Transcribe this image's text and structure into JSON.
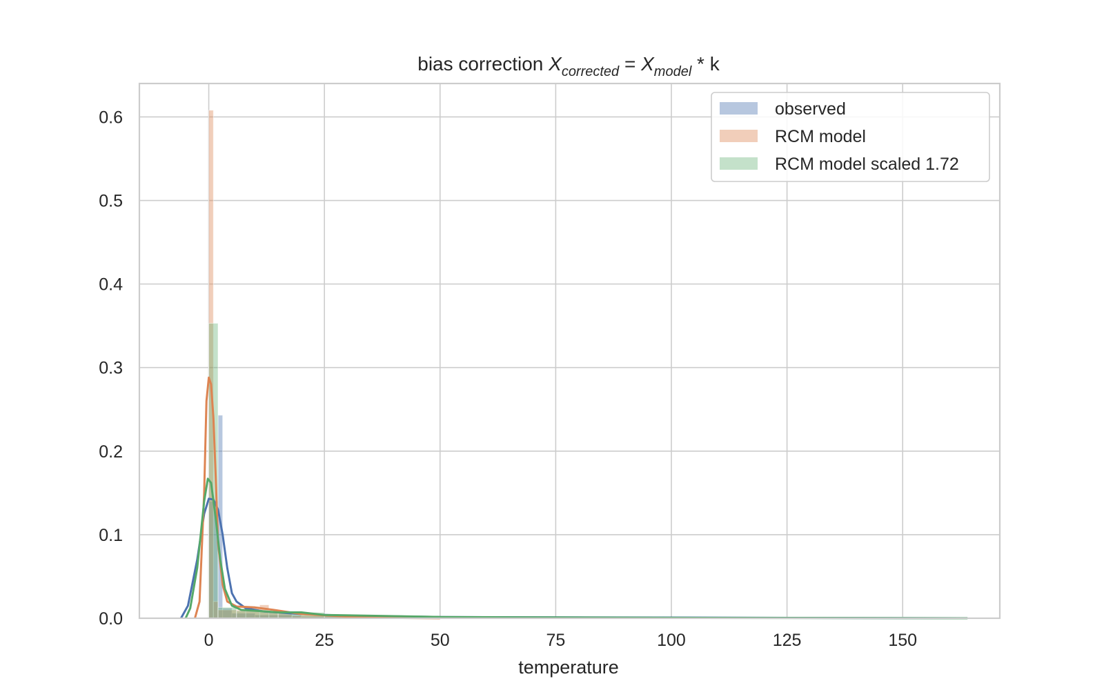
{
  "chart_data": {
    "type": "histogram",
    "title": {
      "prefix": "bias correction ",
      "var1": "X",
      "sub1": "corrected",
      "mid": " = ",
      "var2": "X",
      "sub2": "model",
      "suffix": " * k"
    },
    "xlabel": "temperature",
    "ylabel": "",
    "xlim": [
      -15,
      171
    ],
    "ylim": [
      0,
      0.64
    ],
    "xticks": [
      0,
      25,
      50,
      75,
      100,
      125,
      150
    ],
    "yticks": [
      0.0,
      0.1,
      0.2,
      0.3,
      0.4,
      0.5,
      0.6
    ],
    "xtick_labels": [
      "0",
      "25",
      "50",
      "75",
      "100",
      "125",
      "150"
    ],
    "ytick_labels": [
      "0.0",
      "0.1",
      "0.2",
      "0.3",
      "0.4",
      "0.5",
      "0.6"
    ],
    "grid": true,
    "legend_position": "top-right",
    "series": [
      {
        "name": "observed",
        "color": "#4c72b0",
        "bar_alpha": 0.4,
        "hist_bins": [
          [
            0,
            2,
            0.14
          ],
          [
            2,
            3,
            0.243
          ],
          [
            3,
            5,
            0.012
          ],
          [
            5,
            10,
            0.006
          ],
          [
            10,
            20,
            0.004
          ],
          [
            20,
            40,
            0.002
          ],
          [
            40,
            164,
            0.0015
          ]
        ],
        "kde": [
          [
            -6,
            0.0
          ],
          [
            -4.5,
            0.015
          ],
          [
            -2.5,
            0.07
          ],
          [
            -1,
            0.125
          ],
          [
            0,
            0.143
          ],
          [
            1,
            0.142
          ],
          [
            2,
            0.13
          ],
          [
            3,
            0.1
          ],
          [
            4,
            0.06
          ],
          [
            5,
            0.03
          ],
          [
            6,
            0.02
          ],
          [
            8,
            0.012
          ],
          [
            12,
            0.008
          ],
          [
            20,
            0.005
          ],
          [
            30,
            0.003
          ],
          [
            50,
            0.0015
          ],
          [
            80,
            0.001
          ],
          [
            164,
            0.0
          ]
        ]
      },
      {
        "name": "RCM model",
        "color": "#dd8452",
        "bar_alpha": 0.4,
        "hist_bins": [
          [
            0,
            1,
            0.608
          ],
          [
            1,
            2,
            0.02
          ],
          [
            2,
            8,
            0.01
          ],
          [
            8,
            11,
            0.014
          ],
          [
            11,
            13,
            0.016
          ],
          [
            13,
            18,
            0.008
          ],
          [
            18,
            30,
            0.003
          ]
        ],
        "kde": [
          [
            -3,
            0.0
          ],
          [
            -2,
            0.02
          ],
          [
            -1,
            0.15
          ],
          [
            -0.5,
            0.26
          ],
          [
            0,
            0.288
          ],
          [
            0.5,
            0.28
          ],
          [
            1,
            0.24
          ],
          [
            1.5,
            0.17
          ],
          [
            2,
            0.09
          ],
          [
            3,
            0.04
          ],
          [
            4,
            0.02
          ],
          [
            6,
            0.014
          ],
          [
            10,
            0.013
          ],
          [
            14,
            0.01
          ],
          [
            20,
            0.005
          ],
          [
            30,
            0.002
          ],
          [
            40,
            0.0005
          ],
          [
            50,
            0.0
          ]
        ]
      },
      {
        "name": "RCM model scaled 1.72",
        "color": "#55a868",
        "bar_alpha": 0.35,
        "hist_bins": [
          [
            0,
            2,
            0.353
          ],
          [
            2,
            6,
            0.013
          ],
          [
            6,
            15,
            0.009
          ],
          [
            15,
            25,
            0.007
          ],
          [
            25,
            40,
            0.003
          ],
          [
            40,
            80,
            0.001
          ]
        ],
        "kde": [
          [
            -5,
            0.0
          ],
          [
            -4,
            0.012
          ],
          [
            -2.5,
            0.06
          ],
          [
            -1,
            0.14
          ],
          [
            -0.2,
            0.167
          ],
          [
            0.5,
            0.162
          ],
          [
            1.5,
            0.12
          ],
          [
            2.5,
            0.07
          ],
          [
            3.5,
            0.035
          ],
          [
            5,
            0.015
          ],
          [
            7,
            0.01
          ],
          [
            10,
            0.009
          ],
          [
            15,
            0.007
          ],
          [
            20,
            0.007
          ],
          [
            25,
            0.004
          ],
          [
            35,
            0.003
          ],
          [
            50,
            0.0015
          ],
          [
            70,
            0.001
          ],
          [
            100,
            0.0005
          ],
          [
            130,
            0.0003
          ],
          [
            164,
            0.0
          ]
        ]
      }
    ]
  }
}
